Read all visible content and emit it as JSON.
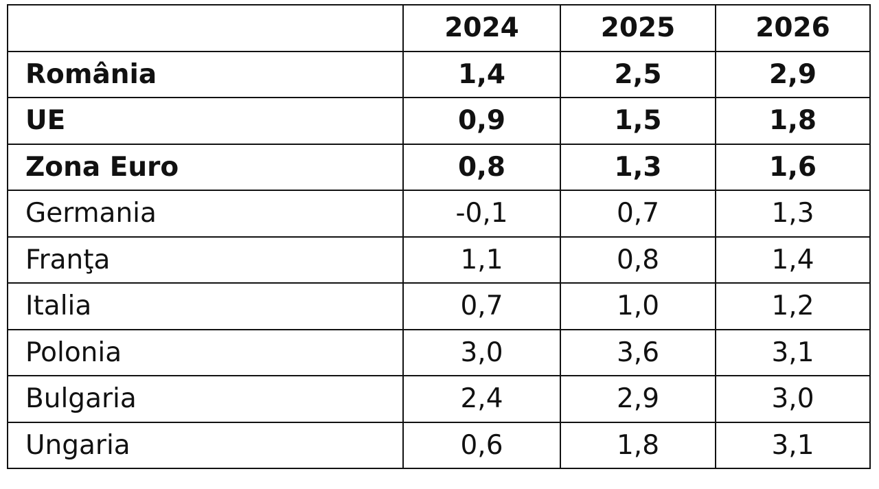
{
  "table": {
    "headers": [
      "",
      "2024",
      "2025",
      "2026"
    ],
    "rows": [
      {
        "name": "România",
        "values": [
          "1,4",
          "2,5",
          "2,9"
        ],
        "bold": true
      },
      {
        "name": "UE",
        "values": [
          "0,9",
          "1,5",
          "1,8"
        ],
        "bold": true
      },
      {
        "name": "Zona Euro",
        "values": [
          "0,8",
          "1,3",
          "1,6"
        ],
        "bold": true
      },
      {
        "name": "Germania",
        "values": [
          "-0,1",
          "0,7",
          "1,3"
        ],
        "bold": false
      },
      {
        "name": "Franţa",
        "values": [
          "1,1",
          "0,8",
          "1,4"
        ],
        "bold": false
      },
      {
        "name": "Italia",
        "values": [
          "0,7",
          "1,0",
          "1,2"
        ],
        "bold": false
      },
      {
        "name": "Polonia",
        "values": [
          "3,0",
          "3,6",
          "3,1"
        ],
        "bold": false
      },
      {
        "name": "Bulgaria",
        "values": [
          "2,4",
          "2,9",
          "3,0"
        ],
        "bold": false
      },
      {
        "name": "Ungaria",
        "values": [
          "0,6",
          "1,8",
          "3,1"
        ],
        "bold": false
      }
    ]
  }
}
